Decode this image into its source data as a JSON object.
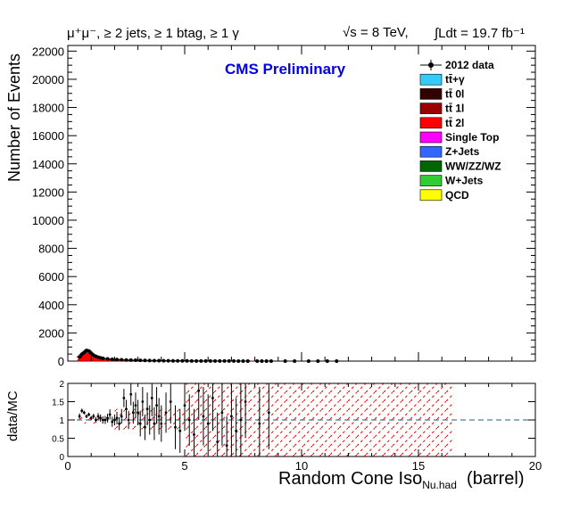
{
  "header": {
    "selection": "μ⁺μ⁻, ≥ 2 jets, ≥ 1 btag, ≥ 1 γ",
    "energy": "√s = 8 TeV,",
    "lumi": "∫Ldt = 19.7 fb⁻¹"
  },
  "cms_label": "CMS Preliminary",
  "legend": [
    {
      "label": "2012 data",
      "color": "#000000",
      "kind": "marker"
    },
    {
      "label": "tt̄+γ",
      "color": "#33ccff",
      "kind": "box"
    },
    {
      "label": "tt̄ 0l",
      "color": "#330000",
      "kind": "box"
    },
    {
      "label": "tt̄ 1l",
      "color": "#990000",
      "kind": "box"
    },
    {
      "label": "tt̄ 2l",
      "color": "#ff0000",
      "kind": "box"
    },
    {
      "label": "Single Top",
      "color": "#ff00ff",
      "kind": "box"
    },
    {
      "label": "Z+Jets",
      "color": "#3366ff",
      "kind": "box"
    },
    {
      "label": "WW/ZZ/WZ",
      "color": "#006600",
      "kind": "box"
    },
    {
      "label": "W+Jets",
      "color": "#33cc33",
      "kind": "box"
    },
    {
      "label": "QCD",
      "color": "#ffff00",
      "kind": "box"
    }
  ],
  "chart_data": [
    {
      "type": "area",
      "xlabel": "Random Cone Iso",
      "xlabel_sub": "Nu.had",
      "xlabel_suffix": "(barrel)",
      "ylabel": "Number of Events",
      "xlim": [
        0,
        20
      ],
      "ylim": [
        0,
        22400
      ],
      "yticks": [
        0,
        2000,
        4000,
        6000,
        8000,
        10000,
        12000,
        14000,
        16000,
        18000,
        20000,
        22000
      ],
      "xticks": [
        0,
        5,
        10,
        15,
        20
      ],
      "data_points": {
        "name": "2012 data",
        "x": [
          0.5,
          0.6,
          0.7,
          0.8,
          0.9,
          1.0,
          1.1,
          1.2,
          1.3,
          1.4,
          1.5,
          1.7,
          1.9,
          2.1,
          2.3,
          2.5,
          2.7,
          2.9,
          3.1,
          3.3,
          3.5,
          3.7,
          3.9,
          4.1,
          4.3,
          4.5,
          4.7,
          4.9,
          5.1,
          5.3,
          5.5,
          5.7,
          5.9,
          6.1,
          6.3,
          6.5,
          6.7,
          6.9,
          7.1,
          7.3,
          7.5,
          7.7,
          8.1,
          8.3,
          8.5,
          8.7,
          9.3,
          9.7,
          10.3,
          10.7,
          11.1,
          11.5
        ],
        "y": [
          300,
          480,
          620,
          760,
          720,
          560,
          420,
          340,
          280,
          230,
          200,
          160,
          130,
          110,
          95,
          80,
          70,
          60,
          52,
          46,
          40,
          35,
          30,
          26,
          22,
          19,
          17,
          15,
          13,
          11,
          10,
          9,
          8,
          7,
          6,
          5,
          5,
          4,
          4,
          3,
          3,
          3,
          2,
          2,
          2,
          2,
          1,
          1,
          1,
          1,
          1,
          1
        ]
      },
      "mc_total": {
        "x": [
          0.4,
          0.5,
          0.6,
          0.7,
          0.8,
          0.9,
          1.0,
          1.1,
          1.2,
          1.3,
          1.4,
          1.5,
          1.7,
          1.9,
          2.1,
          2.3,
          2.5,
          3.0,
          3.5,
          4.0,
          5.0,
          6.0,
          7.0,
          8.0
        ],
        "y": [
          0,
          250,
          400,
          520,
          600,
          560,
          450,
          350,
          290,
          240,
          200,
          175,
          140,
          115,
          95,
          80,
          68,
          45,
          32,
          22,
          12,
          6,
          3,
          1
        ]
      }
    },
    {
      "type": "scatter",
      "name": "ratio",
      "ylabel": "data/MC",
      "xlim": [
        0,
        20
      ],
      "ylim": [
        0,
        2
      ],
      "yticks": [
        0,
        0.5,
        1,
        1.5,
        2
      ],
      "reference_line": 1,
      "x": [
        0.5,
        0.6,
        0.7,
        0.8,
        0.9,
        1.0,
        1.1,
        1.2,
        1.3,
        1.4,
        1.5,
        1.6,
        1.7,
        1.8,
        1.9,
        2.0,
        2.1,
        2.2,
        2.3,
        2.4,
        2.5,
        2.6,
        2.7,
        2.8,
        2.9,
        3.0,
        3.1,
        3.2,
        3.3,
        3.4,
        3.5,
        3.6,
        3.7,
        3.8,
        3.9,
        4.0,
        4.2,
        4.4,
        4.6,
        4.8,
        5.0,
        5.2,
        5.4,
        5.6,
        5.8,
        6.0,
        6.2,
        6.4,
        6.6,
        6.8,
        7.0,
        7.2,
        7.4,
        7.6,
        8.2,
        8.6
      ],
      "y": [
        1.1,
        1.25,
        1.2,
        1.1,
        1.15,
        1.05,
        1.1,
        1.0,
        1.1,
        1.05,
        1.0,
        1.0,
        1.05,
        1.15,
        0.95,
        1.0,
        1.05,
        0.9,
        1.1,
        1.6,
        1.3,
        1.0,
        1.7,
        1.2,
        1.4,
        1.2,
        0.9,
        1.5,
        0.8,
        1.3,
        1.0,
        1.6,
        0.9,
        1.4,
        1.1,
        0.9,
        1.2,
        1.5,
        0.8,
        0.7,
        1.4,
        1.0,
        0.6,
        1.8,
        1.1,
        0.9,
        1.6,
        0.4,
        1.2,
        0.3,
        1.1,
        0.7,
        1.0,
        1.5,
        0.9,
        1.2
      ],
      "err": [
        0.08,
        0.06,
        0.05,
        0.05,
        0.05,
        0.06,
        0.07,
        0.08,
        0.09,
        0.1,
        0.1,
        0.11,
        0.12,
        0.14,
        0.14,
        0.15,
        0.17,
        0.18,
        0.2,
        0.25,
        0.25,
        0.25,
        0.3,
        0.3,
        0.35,
        0.35,
        0.35,
        0.4,
        0.35,
        0.45,
        0.4,
        0.5,
        0.45,
        0.5,
        0.5,
        0.5,
        0.55,
        0.6,
        0.6,
        0.6,
        0.7,
        0.7,
        0.7,
        0.8,
        0.8,
        0.8,
        0.9,
        0.8,
        0.9,
        0.8,
        1.0,
        0.9,
        1.0,
        1.0,
        1.0,
        1.0
      ]
    }
  ]
}
